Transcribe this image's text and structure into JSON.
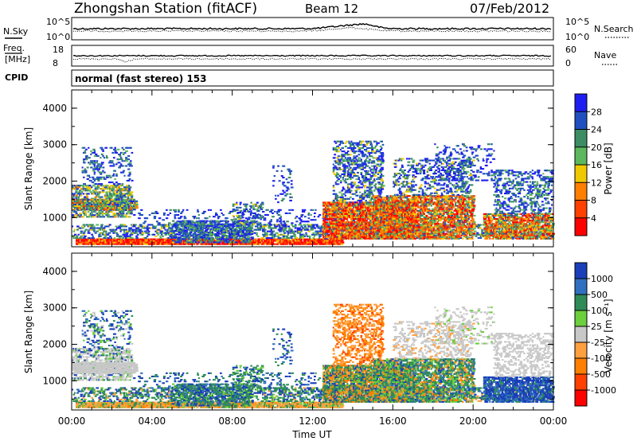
{
  "header": {
    "title": "Zhongshan Station (fitACF)",
    "beam": "Beam 12",
    "date": "07/Feb/2012"
  },
  "status_panels": {
    "nsky": {
      "label": "N.Sky",
      "ticks_top": "10^5",
      "ticks_bottom": "10^0"
    },
    "nsearch": {
      "label": "N.Search",
      "ticks_top": "10^5",
      "ticks_bottom": "10^0"
    },
    "freq": {
      "label_line1": "Freq.",
      "label_line2": "[MHz]",
      "tick_top": "18",
      "tick_bottom": "8"
    },
    "nave": {
      "label": "Nave",
      "tick_top": "60",
      "tick_bottom": "0"
    },
    "cpid": {
      "label": "CPID",
      "text": "normal (fast stereo) 153"
    }
  },
  "chart_data": [
    {
      "type": "heatmap",
      "panel": "power",
      "ylabel": "Slant Range [km]",
      "yticks": [
        "1000",
        "2000",
        "3000",
        "4000"
      ],
      "ylim": [
        200,
        4500
      ],
      "colorbar": {
        "label": "Power [dB]",
        "ticks": [
          "4",
          "8",
          "12",
          "16",
          "20",
          "24",
          "28"
        ],
        "colors": [
          "#1e1ef0",
          "#2050c0",
          "#3c8c64",
          "#5cb85c",
          "#f0c800",
          "#ff7f00",
          "#ff4000",
          "#ff0000"
        ]
      }
    },
    {
      "type": "heatmap",
      "panel": "velocity",
      "ylabel": "Slant Range [km]",
      "yticks": [
        "1000",
        "2000",
        "3000",
        "4000"
      ],
      "ylim": [
        200,
        4500
      ],
      "xlabel": "Time UT",
      "xticks": [
        "00:00",
        "04:00",
        "08:00",
        "12:00",
        "16:00",
        "20:00",
        "00:00"
      ],
      "colorbar": {
        "label": "Velocity [m s⁻¹]",
        "ticks": [
          "1000",
          "500",
          "100",
          "25",
          "-25",
          "-100",
          "-500",
          "-1000"
        ],
        "colors": [
          "#1a3fb8",
          "#3070c0",
          "#2e8b57",
          "#6ccf3c",
          "#c8c8c8",
          "#ffa040",
          "#ff8000",
          "#ff4000",
          "#ff0000"
        ]
      }
    }
  ]
}
